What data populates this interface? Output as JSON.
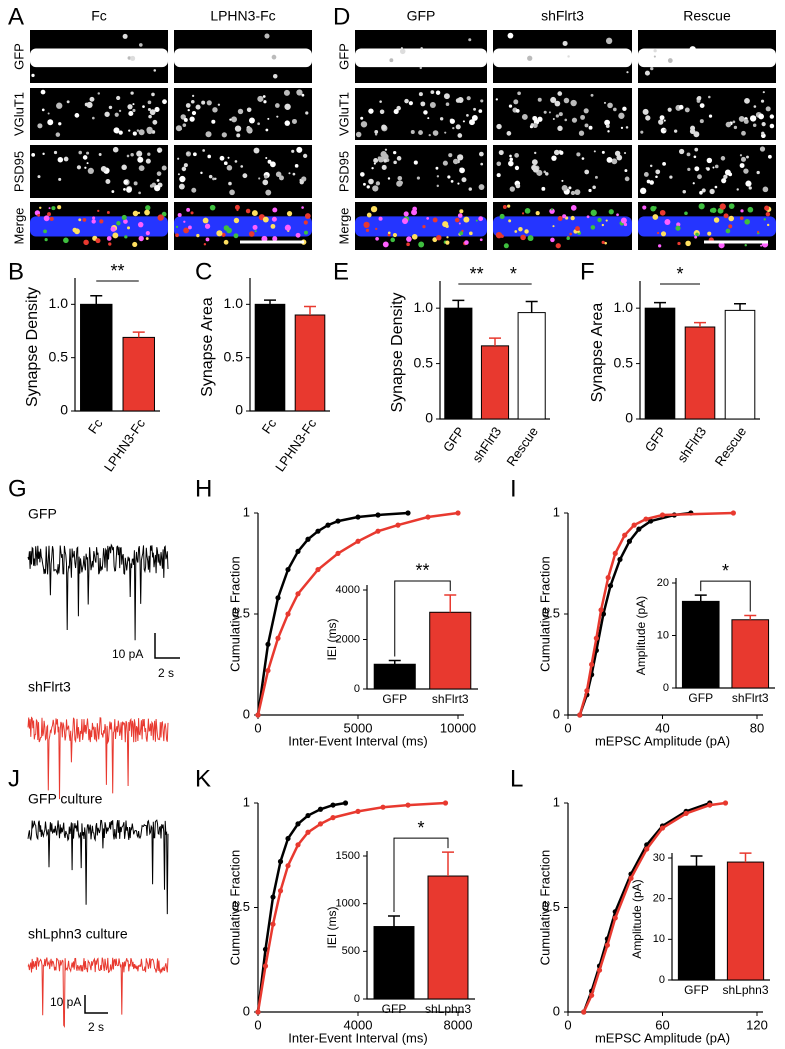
{
  "panel_letters": [
    "A",
    "B",
    "C",
    "D",
    "E",
    "F",
    "G",
    "H",
    "I",
    "J",
    "K",
    "L"
  ],
  "image_panels": [
    {
      "columns": [
        "Fc",
        "LPHN3-Fc"
      ],
      "rows": [
        "GFP",
        "VGluT1",
        "PSD95",
        "Merge"
      ],
      "row_colors": [
        "#2f55ff",
        "#3fbf3f",
        "#e8392f",
        "#000000"
      ]
    },
    {
      "columns": [
        "GFP",
        "shFlrt3",
        "Rescue"
      ],
      "rows": [
        "GFP",
        "VGluT1",
        "PSD95",
        "Merge"
      ],
      "row_colors": [
        "#2f55ff",
        "#3fbf3f",
        "#e8392f",
        "#000000"
      ]
    }
  ],
  "traces": [
    {
      "labels": [
        "GFP",
        "shFlrt3"
      ],
      "colors": [
        "#000000",
        "#e8392f"
      ],
      "scale_y": "10 pA",
      "scale_x": "2 s"
    },
    {
      "labels": [
        "GFP culture",
        "shLphn3 culture"
      ],
      "colors": [
        "#000000",
        "#e8392f"
      ],
      "scale_y": "10 pA",
      "scale_x": "2 s"
    }
  ],
  "chart_data": [
    {
      "type": "bar",
      "ylabel": "Synapse Density",
      "categories": [
        "Fc",
        "LPHN3-Fc"
      ],
      "values": [
        1.0,
        0.69
      ],
      "errors": [
        0.08,
        0.05
      ],
      "colors": [
        "#000000",
        "#e8392f"
      ],
      "ylim": [
        0,
        1.2
      ],
      "yticks": [
        0,
        0.5,
        {
          "value": 1,
          "label": "1.0"
        }
      ],
      "annotations": [
        "**"
      ]
    },
    {
      "type": "bar",
      "ylabel": "Synapse Area",
      "categories": [
        "Fc",
        "LPHN3-Fc"
      ],
      "values": [
        1.0,
        0.9
      ],
      "errors": [
        0.04,
        0.08
      ],
      "colors": [
        "#000000",
        "#e8392f"
      ],
      "ylim": [
        0,
        1.2
      ],
      "yticks": [
        0,
        0.5,
        {
          "value": 1,
          "label": "1.0"
        }
      ],
      "annotations": []
    },
    {
      "type": "bar",
      "ylabel": "Synapse Density",
      "categories": [
        "GFP",
        "shFlrt3",
        "Rescue"
      ],
      "values": [
        1.0,
        0.66,
        0.96
      ],
      "errors": [
        0.07,
        0.07,
        0.1
      ],
      "colors": [
        "#000000",
        "#e8392f",
        "#ffffff"
      ],
      "ylim": [
        0,
        1.2
      ],
      "yticks": [
        0,
        0.5,
        {
          "value": 1,
          "label": "1.0"
        }
      ],
      "annotations": [
        "**",
        "*"
      ]
    },
    {
      "type": "bar",
      "ylabel": "Synapse Area",
      "categories": [
        "GFP",
        "shFlrt3",
        "Rescue"
      ],
      "values": [
        1.0,
        0.83,
        0.98
      ],
      "errors": [
        0.05,
        0.04,
        0.06
      ],
      "colors": [
        "#000000",
        "#e8392f",
        "#ffffff"
      ],
      "ylim": [
        0,
        1.2
      ],
      "yticks": [
        0,
        0.5,
        {
          "value": 1,
          "label": "1.0"
        }
      ],
      "annotations": [
        "*"
      ]
    },
    {
      "type": "line",
      "ylabel": "Cumulative Fraction",
      "xlabel": "Inter-Event Interval (ms)",
      "xlim": [
        0,
        10000
      ],
      "xticks": [
        0,
        5000,
        10000
      ],
      "ylim": [
        0,
        1
      ],
      "yticks": [
        0,
        0.5,
        1
      ],
      "series": [
        {
          "color": "#000000",
          "x": [
            0,
            500,
            1000,
            1500,
            2000,
            2500,
            3000,
            3500,
            4000,
            5000,
            6000,
            7500
          ],
          "values": [
            0,
            0.35,
            0.58,
            0.72,
            0.81,
            0.87,
            0.91,
            0.94,
            0.96,
            0.98,
            0.99,
            1.0
          ]
        },
        {
          "color": "#e8392f",
          "x": [
            0,
            500,
            1000,
            1500,
            2000,
            3000,
            4000,
            5000,
            6000,
            7000,
            8500,
            10000
          ],
          "values": [
            0,
            0.22,
            0.38,
            0.5,
            0.6,
            0.72,
            0.8,
            0.86,
            0.91,
            0.94,
            0.98,
            1.0
          ]
        }
      ],
      "inset": {
        "type": "bar",
        "ylabel": "IEI (ms)",
        "categories": [
          "GFP",
          "shFlrt3"
        ],
        "values": [
          1000,
          3100
        ],
        "errors": [
          150,
          700
        ],
        "colors": [
          "#000000",
          "#e8392f"
        ],
        "ylim": [
          0,
          4000
        ],
        "yticks": [
          0,
          2000,
          4000
        ],
        "annotations": [
          "**"
        ]
      }
    },
    {
      "type": "line",
      "ylabel": "Cumulative Fraction",
      "xlabel": "mEPSC Amplitude (pA)",
      "xlim": [
        0,
        80
      ],
      "xticks": [
        0,
        40,
        80
      ],
      "ylim": [
        0,
        1
      ],
      "yticks": [
        0,
        0.5,
        1
      ],
      "series": [
        {
          "color": "#000000",
          "x": [
            5,
            8,
            10,
            12,
            15,
            18,
            22,
            26,
            30,
            35,
            45,
            52
          ],
          "values": [
            0,
            0.1,
            0.2,
            0.32,
            0.5,
            0.64,
            0.77,
            0.86,
            0.92,
            0.96,
            0.99,
            1.0
          ]
        },
        {
          "color": "#e8392f",
          "x": [
            5,
            8,
            10,
            12,
            14,
            17,
            20,
            24,
            28,
            33,
            40,
            70
          ],
          "values": [
            0,
            0.12,
            0.25,
            0.38,
            0.52,
            0.68,
            0.8,
            0.89,
            0.94,
            0.97,
            0.99,
            1.0
          ]
        }
      ],
      "inset": {
        "type": "bar",
        "ylabel": "Amplitude (pA)",
        "categories": [
          "GFP",
          "shFlrt3"
        ],
        "values": [
          16.5,
          13
        ],
        "errors": [
          1.2,
          0.8
        ],
        "colors": [
          "#000000",
          "#e8392f"
        ],
        "ylim": [
          0,
          20
        ],
        "yticks": [
          0,
          10,
          20
        ],
        "annotations": [
          "*"
        ]
      }
    },
    {
      "type": "line",
      "ylabel": "Cumulative Fraction",
      "xlabel": "Inter-Event Interval (ms)",
      "xlim": [
        0,
        8000
      ],
      "xticks": [
        0,
        4000,
        8000
      ],
      "ylim": [
        0,
        1
      ],
      "yticks": [
        0,
        0.5,
        1
      ],
      "series": [
        {
          "color": "#000000",
          "x": [
            0,
            300,
            600,
            900,
            1200,
            1600,
            2000,
            2500,
            3000,
            3500
          ],
          "values": [
            0,
            0.3,
            0.55,
            0.72,
            0.83,
            0.9,
            0.94,
            0.97,
            0.99,
            1.0
          ]
        },
        {
          "color": "#e8392f",
          "x": [
            0,
            300,
            600,
            900,
            1200,
            1600,
            2000,
            2500,
            3000,
            4000,
            5000,
            6000,
            7500
          ],
          "values": [
            0,
            0.22,
            0.42,
            0.58,
            0.7,
            0.8,
            0.86,
            0.9,
            0.93,
            0.96,
            0.98,
            0.99,
            1.0
          ]
        }
      ],
      "inset": {
        "type": "bar",
        "ylabel": "IEI (ms)",
        "categories": [
          "GFP",
          "shLphn3"
        ],
        "values": [
          760,
          1290
        ],
        "errors": [
          110,
          250
        ],
        "colors": [
          "#000000",
          "#e8392f"
        ],
        "ylim": [
          0,
          1500
        ],
        "yticks": [
          0,
          500,
          1000,
          1500
        ],
        "annotations": [
          "*"
        ]
      }
    },
    {
      "type": "line",
      "ylabel": "Cumulative Fraction",
      "xlabel": "mEPSC Amplitude (pA)",
      "xlim": [
        0,
        120
      ],
      "xticks": [
        0,
        60,
        120
      ],
      "ylim": [
        0,
        1
      ],
      "yticks": [
        0,
        0.5,
        1
      ],
      "series": [
        {
          "color": "#000000",
          "x": [
            10,
            15,
            20,
            25,
            30,
            40,
            50,
            60,
            75,
            90
          ],
          "values": [
            0,
            0.1,
            0.22,
            0.35,
            0.48,
            0.66,
            0.8,
            0.89,
            0.96,
            1.0
          ]
        },
        {
          "color": "#e8392f",
          "x": [
            10,
            15,
            20,
            25,
            30,
            40,
            50,
            60,
            75,
            90,
            100
          ],
          "values": [
            0,
            0.08,
            0.2,
            0.32,
            0.45,
            0.64,
            0.78,
            0.88,
            0.95,
            0.99,
            1.0
          ]
        }
      ],
      "inset": {
        "type": "bar",
        "ylabel": "Amplitude (pA)",
        "categories": [
          "GFP",
          "shLphn3"
        ],
        "values": [
          28,
          29
        ],
        "errors": [
          2.5,
          2.2
        ],
        "colors": [
          "#000000",
          "#e8392f"
        ],
        "ylim": [
          0,
          30
        ],
        "yticks": [
          0,
          10,
          20,
          30
        ],
        "annotations": []
      }
    }
  ]
}
